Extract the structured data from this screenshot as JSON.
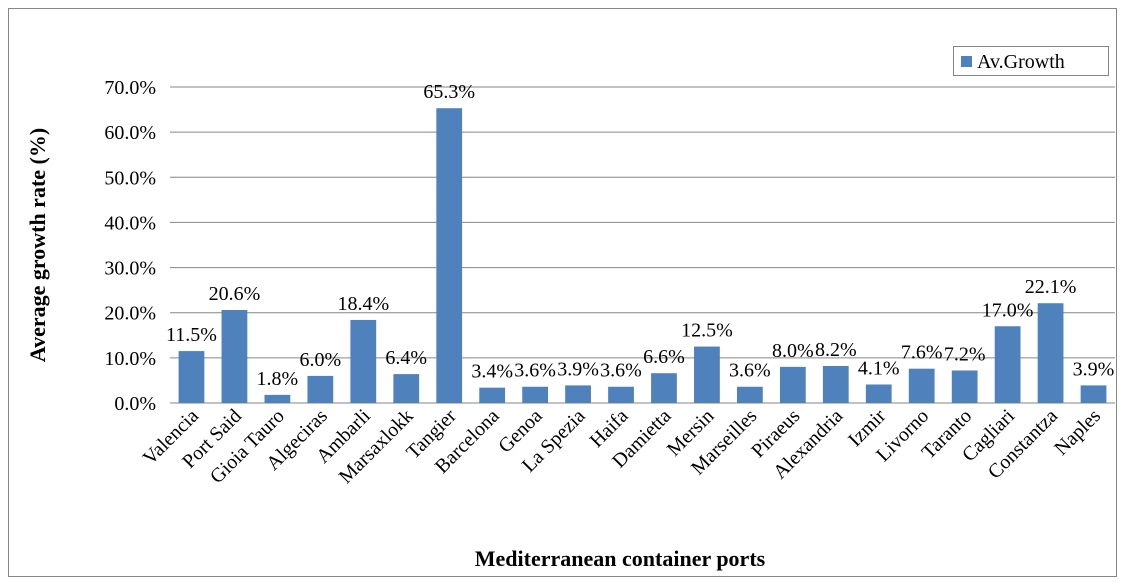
{
  "chart_data": {
    "type": "bar",
    "x_label": "Mediterranean container ports",
    "y_label": "Average growth rate (%)",
    "categories": [
      "Valencia",
      "Port Said",
      "Gioia Tauro",
      "Algeciras",
      "Ambarli",
      "Marsaxlokk",
      "Tangier",
      "Barcelona",
      "Genoa",
      "La Spezia",
      "Haifa",
      "Damietta",
      "Mersin",
      "Marseilles",
      "Piraeus",
      "Alexandria",
      "Izmir",
      "Livorno",
      "Taranto",
      "Cagliari",
      "Constantza",
      "Naples"
    ],
    "series": [
      {
        "name": "Av.Growth",
        "color": "#4f81bd",
        "values": [
          11.5,
          20.6,
          1.8,
          6.0,
          18.4,
          6.4,
          65.3,
          3.4,
          3.6,
          3.9,
          3.6,
          6.6,
          12.5,
          3.6,
          8.0,
          8.2,
          4.1,
          7.6,
          7.2,
          17.0,
          22.1,
          3.9
        ],
        "value_labels": [
          "11.5%",
          "20.6%",
          "1.8%",
          "6.0%",
          "18.4%",
          "6.4%",
          "65.3%",
          "3.4%",
          "3.6%",
          "3.9%",
          "3.6%",
          "6.6%",
          "12.5%",
          "3.6%",
          "8.0%",
          "8.2%",
          "4.1%",
          "7.6%",
          "7.2%",
          "17.0%",
          "22.1%",
          "3.9%"
        ]
      }
    ],
    "ylim": [
      0,
      70
    ],
    "yticks": [
      {
        "value": 0,
        "label": "0.0%"
      },
      {
        "value": 10,
        "label": "10.0%"
      },
      {
        "value": 20,
        "label": "20.0%"
      },
      {
        "value": 30,
        "label": "30.0%"
      },
      {
        "value": 40,
        "label": "40.0%"
      },
      {
        "value": 50,
        "label": "50.0%"
      },
      {
        "value": 60,
        "label": "60.0%"
      },
      {
        "value": 70,
        "label": "70.0%"
      }
    ],
    "grid": true,
    "legend": "top-right"
  }
}
